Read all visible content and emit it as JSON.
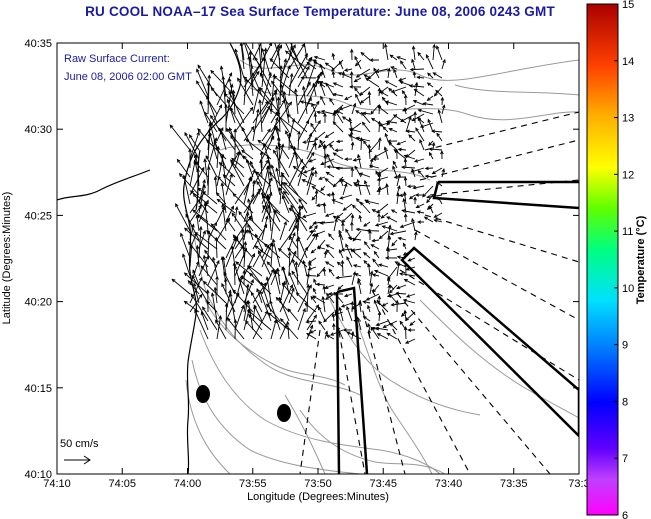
{
  "title": "RU COOL  NOAA–17  Sea Surface Temperature:  June 08, 2006 0243 GMT",
  "annotation": {
    "line1": "Raw Surface Current:",
    "line2": "June 08, 2006 02:00 GMT"
  },
  "scale_label": "50 cm/s",
  "axes": {
    "xlabel": "Longitude (Degrees:Minutes)",
    "ylabel": "Latitude (Degrees:Minutes)",
    "x_ticks": [
      "74:10",
      "74:05",
      "74:00",
      "73:55",
      "73:50",
      "73:45",
      "73:40",
      "73:35",
      "73:3"
    ],
    "y_ticks": [
      "40:35",
      "40:30",
      "40:25",
      "40:20",
      "40:15",
      "40:10"
    ]
  },
  "colorbar": {
    "label": "Temperature (°C)",
    "ticks": [
      "15",
      "14",
      "13",
      "12",
      "11",
      "10",
      "9",
      "8",
      "7",
      "6"
    ],
    "range": [
      6,
      15
    ]
  },
  "colors": {
    "title": "#1a1aa8",
    "land": "#000000",
    "contour": "#9a9a9a"
  }
}
